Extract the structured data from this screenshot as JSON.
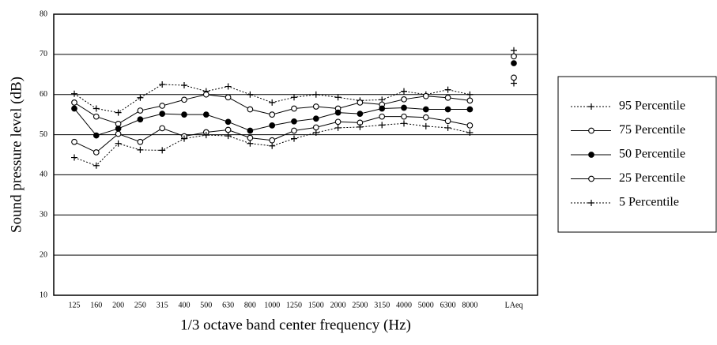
{
  "chart_data": {
    "type": "line",
    "x_label": "1/3 octave band center frequency (Hz)",
    "y_label": "Sound pressure level (dB)",
    "categories": [
      "125",
      "160",
      "200",
      "250",
      "315",
      "400",
      "500",
      "630",
      "800",
      "1000",
      "1250",
      "1500",
      "2000",
      "2500",
      "3150",
      "4000",
      "5000",
      "6300",
      "8000",
      null,
      "LAeq"
    ],
    "ylim": [
      10,
      80
    ],
    "yticks": [
      10,
      20,
      30,
      40,
      50,
      60,
      70,
      80
    ],
    "grid": true,
    "series": [
      {
        "name": "95 Percentile",
        "color": "#000000",
        "line_style": "dotted",
        "marker": "plus",
        "values": [
          60.2,
          56.5,
          55.5,
          59.2,
          62.5,
          62.3,
          60.8,
          62,
          60,
          58,
          59.3,
          60,
          59.3,
          58.5,
          58.7,
          60.8,
          60,
          61.2,
          60,
          null,
          71
        ]
      },
      {
        "name": "75 Percentile",
        "color": "#000000",
        "line_style": "solid",
        "marker": "open-circle",
        "values": [
          58,
          54.5,
          52.7,
          56,
          57.2,
          58.7,
          60,
          59.3,
          56.3,
          55,
          56.5,
          57,
          56.5,
          58,
          57.5,
          58.8,
          59.6,
          59.2,
          58.5,
          null,
          69.5
        ]
      },
      {
        "name": "50 Percentile",
        "color": "#000000",
        "line_style": "solid",
        "marker": "filled-circle",
        "values": [
          56.5,
          49.8,
          51.5,
          53.8,
          55.2,
          55,
          55,
          53.2,
          51,
          52.3,
          53.3,
          54,
          55.5,
          55.2,
          56.5,
          56.7,
          56.3,
          56.3,
          56.3,
          null,
          67.8
        ]
      },
      {
        "name": "25 Percentile",
        "color": "#000000",
        "line_style": "solid",
        "marker": "open-circle",
        "values": [
          48.2,
          45.6,
          50.2,
          48.2,
          51.6,
          49.6,
          50.6,
          51.2,
          49.2,
          48.6,
          51,
          51.8,
          53.2,
          53,
          54.5,
          54.5,
          54.3,
          53.4,
          52.3,
          null,
          64.2
        ]
      },
      {
        "name": "5 Percentile",
        "color": "#000000",
        "line_style": "dotted",
        "marker": "plus",
        "values": [
          44.3,
          42.3,
          47.8,
          46.2,
          46.1,
          49,
          49.9,
          49.7,
          47.8,
          47.2,
          49,
          50.5,
          51.7,
          51.9,
          52.4,
          52.8,
          52.1,
          51.7,
          50.5,
          null,
          62.8
        ]
      }
    ]
  }
}
